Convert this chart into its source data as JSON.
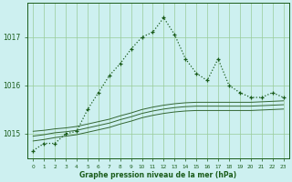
{
  "title": "Graphe pression niveau de la mer (hPa)",
  "background_color": "#cdf0f0",
  "grid_color": "#99cc99",
  "line_color_dark": "#1a5c1a",
  "line_color_med": "#336633",
  "hours": [
    0,
    1,
    2,
    3,
    4,
    5,
    6,
    7,
    8,
    9,
    10,
    11,
    12,
    13,
    14,
    15,
    16,
    17,
    18,
    19,
    20,
    21,
    22,
    23
  ],
  "x_labels": [
    "0",
    "1",
    "2",
    "3",
    "4",
    "5",
    "6",
    "7",
    "8",
    "9",
    "10",
    "11",
    "12",
    "13",
    "14",
    "15",
    "16",
    "17",
    "18",
    "19",
    "20",
    "21",
    "22",
    "23"
  ],
  "pressure_main": [
    1014.65,
    1014.8,
    1014.8,
    1015.0,
    1015.05,
    1015.5,
    1015.85,
    1016.2,
    1016.45,
    1016.75,
    1017.0,
    1017.1,
    1017.4,
    1017.05,
    1016.55,
    1016.25,
    1016.1,
    1016.55,
    1016.0,
    1015.85,
    1015.75,
    1015.75,
    1015.85,
    1015.75
  ],
  "pressure_max": [
    1015.05,
    1015.07,
    1015.1,
    1015.12,
    1015.15,
    1015.2,
    1015.25,
    1015.3,
    1015.37,
    1015.43,
    1015.5,
    1015.55,
    1015.59,
    1015.62,
    1015.64,
    1015.65,
    1015.65,
    1015.65,
    1015.65,
    1015.65,
    1015.65,
    1015.66,
    1015.67,
    1015.68
  ],
  "pressure_avg": [
    1014.95,
    1014.98,
    1015.02,
    1015.04,
    1015.07,
    1015.12,
    1015.17,
    1015.22,
    1015.29,
    1015.35,
    1015.42,
    1015.47,
    1015.51,
    1015.54,
    1015.56,
    1015.57,
    1015.57,
    1015.57,
    1015.57,
    1015.57,
    1015.57,
    1015.58,
    1015.59,
    1015.6
  ],
  "pressure_min": [
    1014.85,
    1014.88,
    1014.92,
    1014.95,
    1014.98,
    1015.03,
    1015.08,
    1015.13,
    1015.2,
    1015.26,
    1015.33,
    1015.38,
    1015.42,
    1015.45,
    1015.47,
    1015.48,
    1015.48,
    1015.48,
    1015.48,
    1015.48,
    1015.48,
    1015.49,
    1015.5,
    1015.51
  ],
  "ylim": [
    1014.5,
    1017.7
  ],
  "yticks": [
    1015,
    1016,
    1017
  ],
  "figsize": [
    3.2,
    2.0
  ],
  "dpi": 100
}
